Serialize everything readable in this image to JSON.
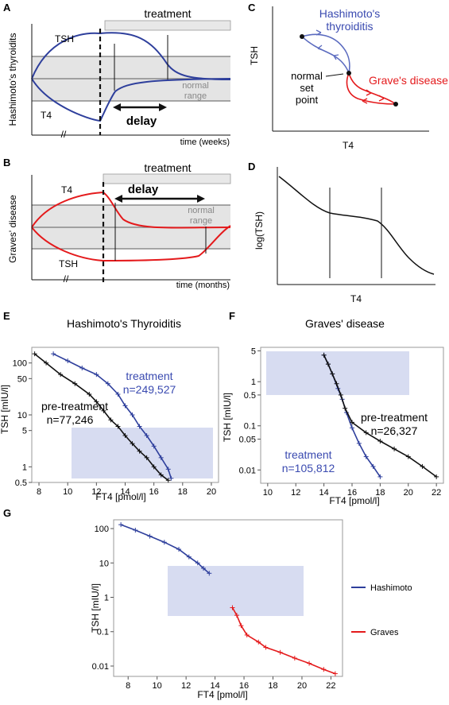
{
  "panel_letters": {
    "A": "A",
    "B": "B",
    "C": "C",
    "D": "D",
    "E": "E",
    "F": "F",
    "G": "G"
  },
  "colors": {
    "blue": "#2e3f9c",
    "red": "#e41a1c",
    "black": "#111111",
    "band": "#e4e4e4",
    "box": "#c9d0ec",
    "bar": "#e8e8e8",
    "gray": "#888888"
  },
  "panel_A": {
    "ylabel": "Hashimoto's thyroidits",
    "treatment": "treatment",
    "curve_top": "TSH",
    "curve_bottom": "T4",
    "delay": "delay",
    "normal1": "normal",
    "normal2": "range",
    "xlabel": "time (weeks)",
    "break": "//"
  },
  "panel_B": {
    "ylabel": "Graves' disease",
    "treatment": "treatment",
    "curve_top": "T4",
    "curve_bottom": "TSH",
    "delay": "delay",
    "normal1": "normal",
    "normal2": "range",
    "xlabel": "time (months)",
    "break": "//"
  },
  "panel_C": {
    "ylabel": "TSH",
    "xlabel": "T4",
    "hashi1": "Hashimoto's",
    "hashi2": "thyroiditis",
    "graves": "Grave's disease",
    "sp1": "normal",
    "sp2": "set",
    "sp3": "point"
  },
  "panel_D": {
    "ylabel": "log(TSH)",
    "xlabel": "T4"
  },
  "panel_E": {
    "title": "Hashimoto's Thyroiditis",
    "xlabel": "FT4 [pmol/l]",
    "ylabel": "TSH [mIU/l]",
    "label_treat1": "treatment",
    "label_treat2": "n=249,527",
    "label_pre1": "pre-treatment",
    "label_pre2": "n=77,246"
  },
  "panel_F": {
    "title": "Graves' disease",
    "xlabel": "FT4 [pmol/l]",
    "ylabel": "TSH [mIU/l]",
    "label_treat1": "treatment",
    "label_treat2": "n=105,812",
    "label_pre1": "pre-treatment",
    "label_pre2": "n=26,327"
  },
  "panel_G": {
    "xlabel": "FT4 [pmol/l]",
    "ylabel": "TSH [mIU/l]",
    "legend": [
      "Hashimoto",
      "Graves"
    ]
  },
  "chart_data": [
    {
      "type": "line",
      "panel": "E",
      "title": "Hashimoto's Thyroiditis",
      "xlabel": "FT4 [pmol/l]",
      "ylabel": "TSH [mIU/l]",
      "xlim": [
        7.5,
        20.5
      ],
      "ylim": [
        0.5,
        200
      ],
      "yscale": "log",
      "x_ticks": [
        8,
        10,
        12,
        14,
        16,
        18,
        20
      ],
      "y_ticks": [
        {
          "v": 100,
          "l": "100"
        },
        {
          "v": 50,
          "l": "50"
        },
        {
          "v": 10,
          "l": "10"
        },
        {
          "v": 5,
          "l": "5"
        },
        {
          "v": 1,
          "l": "1"
        },
        {
          "v": 0.5,
          "l": "0.5"
        }
      ],
      "normal_range": {
        "x": [
          10,
          20
        ],
        "y": [
          0.5,
          5
        ]
      },
      "series": [
        {
          "name": "treatment n=249,527",
          "color": "blue",
          "x": [
            9,
            10,
            11,
            12,
            12.8,
            13.5,
            14,
            14.5,
            15,
            15.5,
            16,
            16.5,
            17,
            17.2
          ],
          "y": [
            150,
            110,
            80,
            60,
            40,
            25,
            15,
            10,
            6,
            4,
            2.5,
            1.5,
            0.9,
            0.6
          ]
        },
        {
          "name": "pre-treatment n=77,246",
          "color": "black",
          "x": [
            7.7,
            8.5,
            9.5,
            10.5,
            11.5,
            12,
            12.5,
            13,
            13.5,
            14,
            14.5,
            15,
            15.5,
            16,
            16.5,
            17
          ],
          "y": [
            150,
            100,
            60,
            40,
            25,
            18,
            12,
            8,
            6,
            4,
            2.8,
            2,
            1.5,
            1,
            0.7,
            0.55
          ]
        }
      ]
    },
    {
      "type": "line",
      "panel": "F",
      "title": "Graves' disease",
      "xlabel": "FT4 [pmol/l]",
      "ylabel": "TSH [mIU/l]",
      "xlim": [
        9.5,
        22.5
      ],
      "ylim": [
        0.005,
        6
      ],
      "yscale": "log",
      "x_ticks": [
        10,
        12,
        14,
        16,
        18,
        20,
        22
      ],
      "y_ticks": [
        {
          "v": 5,
          "l": "5"
        },
        {
          "v": 1,
          "l": "1"
        },
        {
          "v": 0.5,
          "l": "0.5"
        },
        {
          "v": 0.1,
          "l": "0.1"
        },
        {
          "v": 0.05,
          "l": "0.05"
        },
        {
          "v": 0.01,
          "l": "0.01"
        }
      ],
      "normal_range": {
        "x": [
          10,
          20
        ],
        "y": [
          0.5,
          5
        ]
      },
      "series": [
        {
          "name": "treatment n=105,812",
          "color": "blue",
          "x": [
            14,
            14.3,
            14.6,
            15,
            15.3,
            15.6,
            16,
            16.5,
            17,
            17.5,
            18
          ],
          "y": [
            4,
            2.5,
            1.5,
            0.7,
            0.4,
            0.2,
            0.09,
            0.04,
            0.02,
            0.012,
            0.007
          ]
        },
        {
          "name": "pre-treatment n=26,327",
          "color": "black",
          "x": [
            14,
            14.3,
            14.6,
            14.9,
            15.2,
            15.5,
            16,
            17,
            18,
            19,
            20,
            21,
            22
          ],
          "y": [
            4,
            2.5,
            1.5,
            0.9,
            0.5,
            0.25,
            0.12,
            0.07,
            0.045,
            0.03,
            0.02,
            0.012,
            0.007
          ]
        }
      ]
    },
    {
      "type": "line",
      "panel": "G",
      "xlabel": "FT4 [pmol/l]",
      "ylabel": "TSH [mIU/l]",
      "xlim": [
        7,
        22.8
      ],
      "ylim": [
        0.005,
        180
      ],
      "yscale": "log",
      "x_ticks": [
        8,
        10,
        12,
        14,
        16,
        18,
        20,
        22
      ],
      "y_ticks": [
        {
          "v": 100,
          "l": "100"
        },
        {
          "v": 10,
          "l": "10"
        },
        {
          "v": 1,
          "l": "1"
        },
        {
          "v": 0.1,
          "l": "0.1"
        },
        {
          "v": 0.01,
          "l": "0.01"
        }
      ],
      "normal_range": {
        "x": [
          10,
          20
        ],
        "y": [
          0.5,
          5
        ]
      },
      "series": [
        {
          "name": "Hashimoto",
          "color": "blue",
          "x": [
            7.5,
            8.5,
            9.5,
            10.5,
            11.5,
            12.2,
            12.8,
            13.2,
            13.6
          ],
          "y": [
            130,
            90,
            60,
            40,
            25,
            15,
            10,
            7,
            5
          ]
        },
        {
          "name": "Graves",
          "color": "red",
          "x": [
            15.2,
            15.5,
            15.8,
            16.2,
            17,
            17.5,
            18.5,
            19.5,
            20.5,
            21.5,
            22.3
          ],
          "y": [
            0.5,
            0.3,
            0.15,
            0.08,
            0.05,
            0.035,
            0.025,
            0.017,
            0.012,
            0.008,
            0.006
          ]
        }
      ]
    }
  ]
}
